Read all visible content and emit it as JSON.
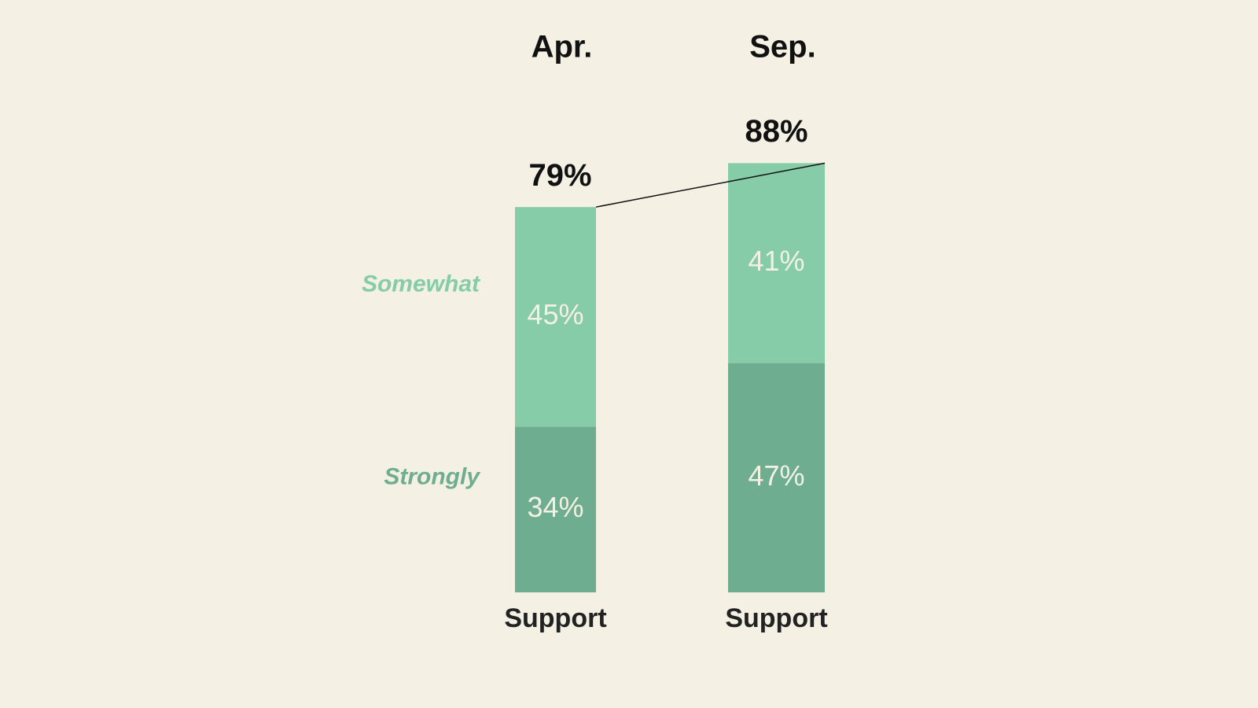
{
  "chart_data": {
    "type": "stacked_bar",
    "categories": [
      "Apr.",
      "Sep."
    ],
    "bar_labels": [
      "Support",
      "Support"
    ],
    "series": [
      {
        "name": "Strongly",
        "color": "#6fad90",
        "values": [
          34,
          47
        ],
        "value_labels": [
          "34%",
          "47%"
        ]
      },
      {
        "name": "Somewhat",
        "color": "#86cca8",
        "values": [
          45,
          41
        ],
        "value_labels": [
          "45%",
          "41%"
        ]
      }
    ],
    "totals": [
      79,
      88
    ],
    "total_labels": [
      "79%",
      "88%"
    ],
    "background": "#f4f1e4"
  }
}
